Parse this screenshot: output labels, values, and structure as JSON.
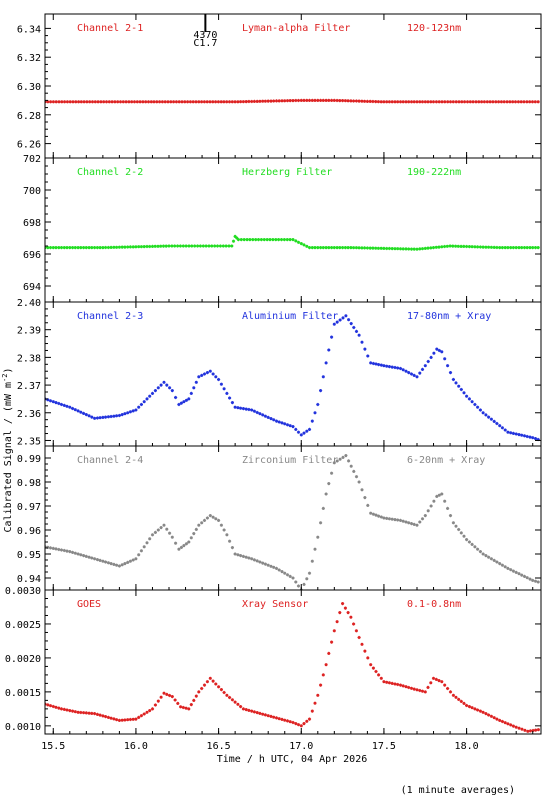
{
  "figure": {
    "ylabel": "Calibrated Signal / (mW m",
    "ylabel_sup": "-2",
    "ylabel_tail": ")",
    "xlabel": "Time / h UTC, 04 Apr 2026",
    "footnote": "(1 minute averages)",
    "event_label_top": "4370",
    "event_label_bottom": "C1.7",
    "event_time": 16.42
  },
  "chart_data": [
    {
      "type": "scatter",
      "channel": "Channel 2-1",
      "filter": "Lyman-alpha Filter",
      "band": "120-123nm",
      "color": "#dd2222",
      "xlim": [
        15.45,
        18.45
      ],
      "ylim": [
        6.25,
        6.35
      ],
      "yticks": [
        "6.26",
        "6.28",
        "6.30",
        "6.32",
        "6.34"
      ],
      "x": [
        15.45,
        16.6,
        17.0,
        17.2,
        17.5,
        17.8,
        18.45
      ],
      "y": [
        6.289,
        6.289,
        6.29,
        6.29,
        6.289,
        6.289,
        6.289
      ]
    },
    {
      "type": "scatter",
      "channel": "Channel 2-2",
      "filter": "Herzberg Filter",
      "band": "190-222nm",
      "color": "#22dd22",
      "xlim": [
        15.45,
        18.45
      ],
      "ylim": [
        693,
        702
      ],
      "yticks": [
        "694",
        "696",
        "698",
        "700",
        "702"
      ],
      "x": [
        15.45,
        15.8,
        16.2,
        16.58,
        16.6,
        16.62,
        16.95,
        17.05,
        17.3,
        17.7,
        17.9,
        18.2,
        18.45
      ],
      "y": [
        696.4,
        696.4,
        696.5,
        696.5,
        697.1,
        696.9,
        696.9,
        696.4,
        696.4,
        696.3,
        696.5,
        696.4,
        696.4
      ]
    },
    {
      "type": "scatter",
      "channel": "Channel 2-3",
      "filter": "Aluminium Filter",
      "band": "17-80nm + Xray",
      "color": "#2233dd",
      "xlim": [
        15.45,
        18.45
      ],
      "ylim": [
        2.348,
        2.4
      ],
      "yticks": [
        "2.35",
        "2.36",
        "2.37",
        "2.38",
        "2.39",
        "2.40"
      ],
      "x": [
        15.45,
        15.6,
        15.75,
        15.9,
        16.0,
        16.1,
        16.17,
        16.22,
        16.26,
        16.32,
        16.38,
        16.45,
        16.5,
        16.55,
        16.6,
        16.7,
        16.85,
        16.95,
        17.0,
        17.05,
        17.1,
        17.15,
        17.2,
        17.27,
        17.35,
        17.42,
        17.5,
        17.6,
        17.7,
        17.75,
        17.82,
        17.85,
        17.92,
        18.0,
        18.1,
        18.25,
        18.4,
        18.45
      ],
      "y": [
        2.365,
        2.362,
        2.358,
        2.359,
        2.361,
        2.367,
        2.371,
        2.368,
        2.363,
        2.365,
        2.373,
        2.375,
        2.372,
        2.367,
        2.362,
        2.361,
        2.357,
        2.355,
        2.352,
        2.354,
        2.363,
        2.378,
        2.392,
        2.395,
        2.388,
        2.378,
        2.377,
        2.376,
        2.373,
        2.377,
        2.383,
        2.382,
        2.372,
        2.366,
        2.36,
        2.353,
        2.351,
        2.35
      ]
    },
    {
      "type": "scatter",
      "channel": "Channel 2-4",
      "filter": "Zirconium Filter",
      "band": "6-20nm + Xray",
      "color": "#888888",
      "xlim": [
        15.45,
        18.45
      ],
      "ylim": [
        0.935,
        0.995
      ],
      "yticks": [
        "0.94",
        "0.95",
        "0.96",
        "0.97",
        "0.98",
        "0.99"
      ],
      "x": [
        15.45,
        15.6,
        15.75,
        15.9,
        16.0,
        16.1,
        16.17,
        16.22,
        16.26,
        16.32,
        16.38,
        16.45,
        16.5,
        16.55,
        16.6,
        16.7,
        16.85,
        16.95,
        17.0,
        17.05,
        17.1,
        17.15,
        17.2,
        17.27,
        17.35,
        17.42,
        17.5,
        17.6,
        17.7,
        17.75,
        17.82,
        17.85,
        17.92,
        18.0,
        18.1,
        18.25,
        18.4,
        18.45
      ],
      "y": [
        0.953,
        0.951,
        0.948,
        0.945,
        0.948,
        0.958,
        0.962,
        0.957,
        0.952,
        0.955,
        0.962,
        0.966,
        0.964,
        0.958,
        0.95,
        0.948,
        0.944,
        0.94,
        0.935,
        0.942,
        0.957,
        0.975,
        0.988,
        0.991,
        0.98,
        0.967,
        0.965,
        0.964,
        0.962,
        0.966,
        0.974,
        0.975,
        0.963,
        0.956,
        0.95,
        0.944,
        0.939,
        0.938
      ]
    },
    {
      "type": "scatter",
      "channel": "GOES",
      "filter": "Xray Sensor",
      "band": "0.1-0.8nm",
      "color": "#dd2222",
      "xlim": [
        15.45,
        18.45
      ],
      "ylim": [
        0.00088,
        0.003
      ],
      "yticks": [
        "0.0010",
        "0.0015",
        "0.0020",
        "0.0025",
        "0.0030"
      ],
      "x": [
        15.45,
        15.55,
        15.65,
        15.75,
        15.9,
        16.0,
        16.1,
        16.17,
        16.22,
        16.27,
        16.32,
        16.38,
        16.45,
        16.55,
        16.65,
        16.8,
        16.95,
        17.0,
        17.05,
        17.1,
        17.15,
        17.2,
        17.25,
        17.3,
        17.35,
        17.42,
        17.5,
        17.6,
        17.7,
        17.75,
        17.8,
        17.85,
        17.92,
        18.0,
        18.1,
        18.2,
        18.3,
        18.37,
        18.45
      ],
      "y": [
        0.00132,
        0.00125,
        0.0012,
        0.00118,
        0.00108,
        0.0011,
        0.00125,
        0.00148,
        0.00143,
        0.00128,
        0.00125,
        0.0015,
        0.0017,
        0.00145,
        0.00125,
        0.00115,
        0.00105,
        0.001,
        0.0011,
        0.00145,
        0.0019,
        0.0024,
        0.0028,
        0.0026,
        0.0023,
        0.0019,
        0.00165,
        0.0016,
        0.00153,
        0.0015,
        0.0017,
        0.00165,
        0.00145,
        0.0013,
        0.0012,
        0.00108,
        0.00098,
        0.00092,
        0.00095
      ]
    }
  ],
  "x_ticks": [
    "15.5",
    "16.0",
    "16.5",
    "17.0",
    "17.5",
    "18.0"
  ],
  "x_tick_values": [
    15.5,
    16.0,
    16.5,
    17.0,
    17.5,
    18.0
  ]
}
